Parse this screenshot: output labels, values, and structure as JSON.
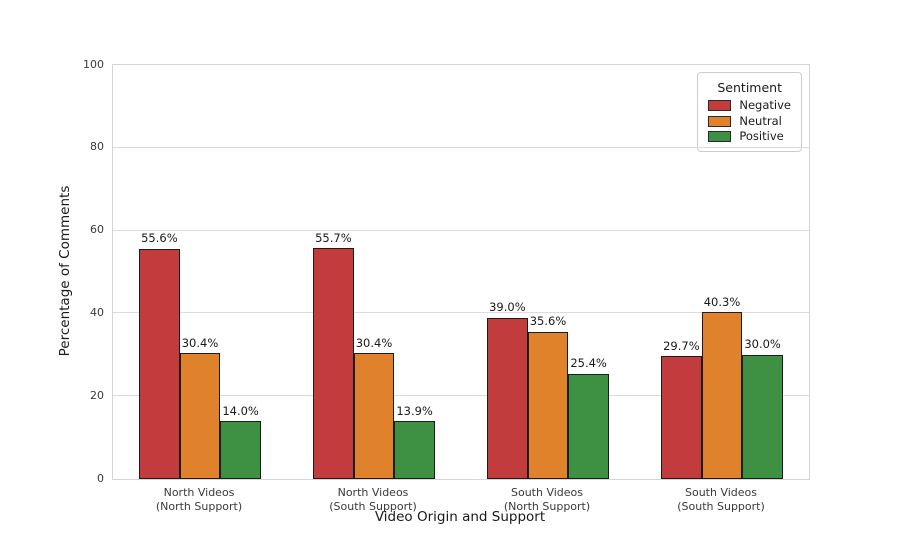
{
  "chart_data": {
    "type": "bar",
    "title": "",
    "xlabel": "Video Origin and Support",
    "ylabel": "Percentage of Comments",
    "ylim": [
      0,
      100
    ],
    "yticks": [
      0,
      20,
      40,
      60,
      80,
      100
    ],
    "grid": "horizontal",
    "legend": {
      "title": "Sentiment",
      "position": "upper-right"
    },
    "categories": [
      {
        "line1": "North Videos",
        "line2": "(North Support)"
      },
      {
        "line1": "North Videos",
        "line2": "(South Support)"
      },
      {
        "line1": "South Videos",
        "line2": "(North Support)"
      },
      {
        "line1": "South Videos",
        "line2": "(South Support)"
      }
    ],
    "series": [
      {
        "name": "Negative",
        "color": "#c23b3d",
        "values": [
          55.6,
          55.7,
          39.0,
          29.7
        ],
        "value_labels": [
          "55.6%",
          "55.7%",
          "39.0%",
          "29.7%"
        ]
      },
      {
        "name": "Neutral",
        "color": "#e0812c",
        "values": [
          30.4,
          30.4,
          35.6,
          40.3
        ],
        "value_labels": [
          "30.4%",
          "30.4%",
          "35.6%",
          "40.3%"
        ]
      },
      {
        "name": "Positive",
        "color": "#3e9142",
        "values": [
          14.0,
          13.9,
          25.4,
          30.0
        ],
        "value_labels": [
          "14.0%",
          "13.9%",
          "25.4%",
          "30.0%"
        ]
      }
    ],
    "style": {
      "bar_edge_color": "#1c1c1c",
      "grid_color": "#dcdcdc",
      "axes_border_color": "#d4d4d4"
    }
  }
}
